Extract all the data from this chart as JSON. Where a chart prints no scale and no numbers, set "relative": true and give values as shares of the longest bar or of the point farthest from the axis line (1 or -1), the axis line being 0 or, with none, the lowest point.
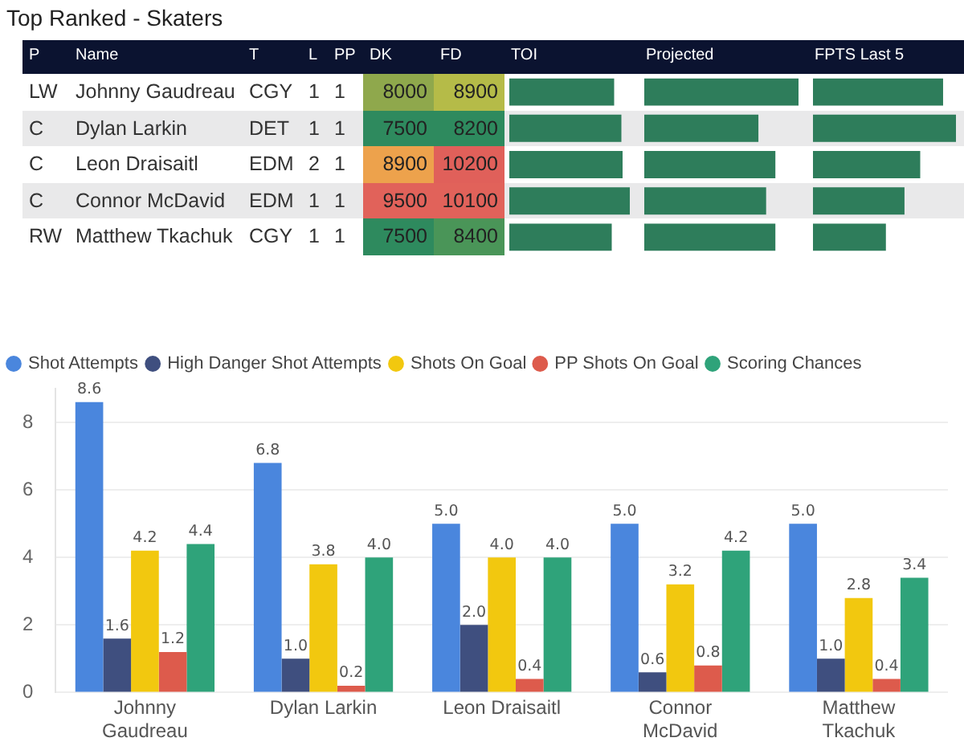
{
  "chart_data": [
    {
      "type": "other",
      "title": "Top Ranked - Skaters",
      "categories": [
        "P",
        "Name",
        "T",
        "L",
        "PP",
        "DK",
        "FD"
      ],
      "cell_labels": [
        [
          "LW",
          "Johnny Gaudreau",
          "CGY",
          "1",
          "1",
          "8000",
          "8900"
        ],
        [
          "C",
          "Dylan Larkin",
          "DET",
          "1",
          "1",
          "7500",
          "8200"
        ],
        [
          "C",
          "Leon Draisaitl",
          "EDM",
          "2",
          "1",
          "8900",
          "10200"
        ],
        [
          "C",
          "Connor McDavid",
          "EDM",
          "1",
          "1",
          "9500",
          "10100"
        ],
        [
          "RW",
          "Matthew Tkachuk",
          "CGY",
          "1",
          "1",
          "7500",
          "8400"
        ]
      ],
      "colors": [
        [
          null,
          null,
          null,
          null,
          null,
          "#8fa84c",
          "#b5bb48"
        ],
        [
          null,
          null,
          null,
          null,
          null,
          "#2e8a5e",
          "#2e8a5e"
        ],
        [
          null,
          null,
          null,
          null,
          null,
          "#eda24c",
          "#e0605a"
        ],
        [
          null,
          null,
          null,
          null,
          null,
          "#e1625a",
          "#e1625a"
        ],
        [
          null,
          null,
          null,
          null,
          null,
          "#2e8a5e",
          "#4a9558"
        ]
      ]
    },
    {
      "type": "bar",
      "title": "TOI",
      "orientation": "horizontal",
      "relative": true,
      "categories": [
        null,
        null,
        null,
        null,
        null
      ],
      "values": [
        0.87,
        0.93,
        0.94,
        1,
        0.85
      ],
      "color": "#2e7d5b"
    },
    {
      "type": "bar",
      "title": "Projected",
      "orientation": "horizontal",
      "relative": true,
      "categories": [
        null,
        null,
        null,
        null,
        null
      ],
      "values": [
        1,
        0.74,
        0.85,
        0.79,
        0.85
      ],
      "color": "#2e7d5b"
    },
    {
      "type": "bar",
      "title": "FPTS Last 5",
      "orientation": "horizontal",
      "relative": true,
      "categories": [
        null,
        null,
        null,
        null,
        null
      ],
      "values": [
        0.91,
        1,
        0.75,
        0.64,
        0.51
      ],
      "color": "#2e7d5b"
    },
    {
      "type": "bar",
      "categories": [
        "Johnny Gaudreau",
        "Dylan Larkin",
        "Leon Draisaitl",
        "Connor McDavid",
        "Matthew Tkachuk"
      ],
      "series": [
        {
          "name": "Shot Attempts",
          "color": "#4a86dd",
          "values": [
            8.6,
            6.8,
            5.0,
            5.0,
            5.0
          ],
          "value_labels": [
            "8.6",
            "6.8",
            "5.0",
            "5.0",
            "5.0"
          ]
        },
        {
          "name": "High Danger Shot Attempts",
          "color": "#3f4f7f",
          "values": [
            1.6,
            1.0,
            2.0,
            0.6,
            1.0
          ],
          "value_labels": [
            "1.6",
            "1.0",
            "2.0",
            "0.6",
            "1.0"
          ]
        },
        {
          "name": "Shots On Goal",
          "color": "#f2c80f",
          "values": [
            4.2,
            3.8,
            4.0,
            3.2,
            2.8
          ],
          "value_labels": [
            "4.2",
            "3.8",
            "4.0",
            "3.2",
            "2.8"
          ]
        },
        {
          "name": "PP Shots On Goal",
          "color": "#dd5b4c",
          "values": [
            1.2,
            0.2,
            0.4,
            0.8,
            0.4
          ],
          "value_labels": [
            "1.2",
            "0.2",
            "0.4",
            "0.8",
            "0.4"
          ]
        },
        {
          "name": "Scoring Chances",
          "color": "#2fa37a",
          "values": [
            4.4,
            4.0,
            4.0,
            4.2,
            3.4
          ],
          "value_labels": [
            "4.4",
            "4.0",
            "4.0",
            "4.2",
            "3.4"
          ]
        }
      ],
      "ylim": [
        0,
        9
      ],
      "yticks": [
        0,
        2,
        4,
        6,
        8
      ],
      "grid": "y",
      "legend": "top left"
    }
  ]
}
